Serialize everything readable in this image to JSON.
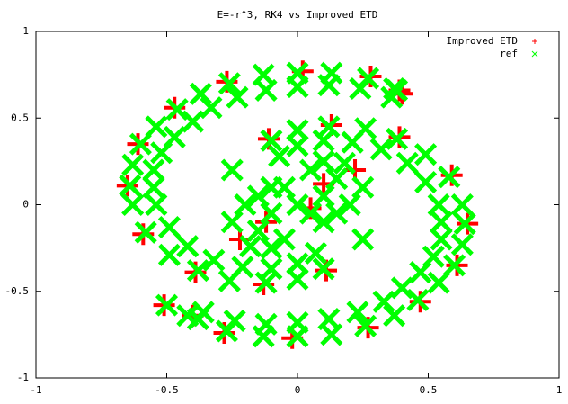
{
  "chart_data": {
    "type": "scatter",
    "title": "E=-r^3, RK4 vs Improved ETD",
    "xlim": [
      -1,
      1
    ],
    "ylim": [
      -1,
      1
    ],
    "xticks": [
      -1,
      -0.5,
      0,
      0.5,
      1
    ],
    "yticks": [
      -1,
      -0.5,
      0,
      0.5,
      1
    ],
    "grid": false,
    "legend": "top-right",
    "series": [
      {
        "name": "Improved ETD",
        "color": "#ff0000",
        "marker": "plus",
        "x": [
          0.4,
          0.28,
          0.02,
          -0.27,
          -0.47,
          -0.61,
          -0.65,
          -0.59,
          -0.39,
          -0.13,
          0.11,
          -0.4,
          -0.28,
          -0.02,
          0.27,
          0.47,
          0.61,
          0.65,
          0.59,
          0.39,
          0.13,
          -0.11,
          0.1,
          -0.12,
          0.22,
          -0.22,
          0.05,
          -0.51,
          0.39
        ],
        "values": [
          0.64,
          0.74,
          0.77,
          0.71,
          0.56,
          0.35,
          0.11,
          -0.17,
          -0.39,
          -0.46,
          -0.38,
          -0.64,
          -0.74,
          -0.77,
          -0.71,
          -0.56,
          -0.35,
          -0.11,
          0.17,
          0.39,
          0.46,
          0.38,
          0.12,
          -0.1,
          0.2,
          -0.2,
          -0.02,
          -0.58,
          0.66
        ]
      },
      {
        "name": "ref",
        "color": "#00ff00",
        "marker": "cross",
        "x": [
          0.38,
          0.36,
          0.27,
          0.24,
          0.13,
          0.12,
          0,
          0,
          -0.13,
          -0.12,
          -0.26,
          -0.23,
          -0.37,
          -0.33,
          -0.46,
          -0.4,
          -0.54,
          -0.47,
          -0.6,
          -0.52,
          -0.63,
          -0.55,
          -0.64,
          -0.55,
          -0.63,
          -0.54,
          -0.58,
          -0.49,
          -0.49,
          -0.42,
          -0.38,
          -0.32,
          -0.26,
          -0.21,
          -0.12,
          -0.1,
          0,
          0,
          0.1,
          0.07,
          -0.38,
          -0.36,
          -0.27,
          -0.24,
          -0.13,
          -0.12,
          0,
          0,
          0.13,
          0.12,
          0.26,
          0.23,
          0.37,
          0.33,
          0.46,
          0.4,
          0.54,
          0.47,
          0.6,
          0.52,
          0.63,
          0.55,
          0.64,
          0.55,
          0.63,
          0.54,
          0.58,
          0.49,
          0.49,
          0.42,
          0.38,
          0.32,
          0.26,
          0.21,
          0.12,
          0.1,
          0,
          0,
          -0.1,
          -0.07,
          0,
          0.1,
          -0.1,
          0.15,
          -0.15,
          0.05,
          -0.05,
          0.2,
          -0.2,
          0.1,
          -0.1,
          0.25,
          -0.25,
          0.05,
          -0.05,
          0.15,
          -0.15,
          0.1,
          -0.1,
          0.25,
          -0.25,
          -0.5,
          -0.42,
          0.37,
          0.18,
          -0.18
        ],
        "values": [
          0.66,
          0.62,
          0.73,
          0.67,
          0.76,
          0.69,
          0.76,
          0.68,
          0.75,
          0.66,
          0.7,
          0.62,
          0.64,
          0.56,
          0.55,
          0.48,
          0.45,
          0.39,
          0.35,
          0.3,
          0.23,
          0.2,
          0.11,
          0.1,
          0,
          0,
          -0.16,
          -0.13,
          -0.29,
          -0.24,
          -0.38,
          -0.32,
          -0.44,
          -0.36,
          -0.45,
          -0.37,
          -0.43,
          -0.34,
          -0.37,
          -0.28,
          -0.66,
          -0.62,
          -0.73,
          -0.67,
          -0.76,
          -0.69,
          -0.76,
          -0.68,
          -0.75,
          -0.66,
          -0.7,
          -0.62,
          -0.64,
          -0.56,
          -0.55,
          -0.48,
          -0.45,
          -0.39,
          -0.35,
          -0.3,
          -0.23,
          -0.2,
          -0.11,
          -0.1,
          0,
          0,
          0.16,
          0.13,
          0.29,
          0.24,
          0.38,
          0.32,
          0.44,
          0.36,
          0.45,
          0.37,
          0.43,
          0.34,
          0.37,
          0.28,
          0,
          0.05,
          -0.05,
          0.15,
          -0.15,
          0.2,
          -0.2,
          0,
          0,
          -0.1,
          0.1,
          0.1,
          -0.1,
          -0.05,
          0.1,
          -0.05,
          0.05,
          0.25,
          -0.25,
          -0.2,
          0.2,
          -0.58,
          -0.64,
          0.67,
          0.24,
          -0.24
        ]
      }
    ]
  }
}
